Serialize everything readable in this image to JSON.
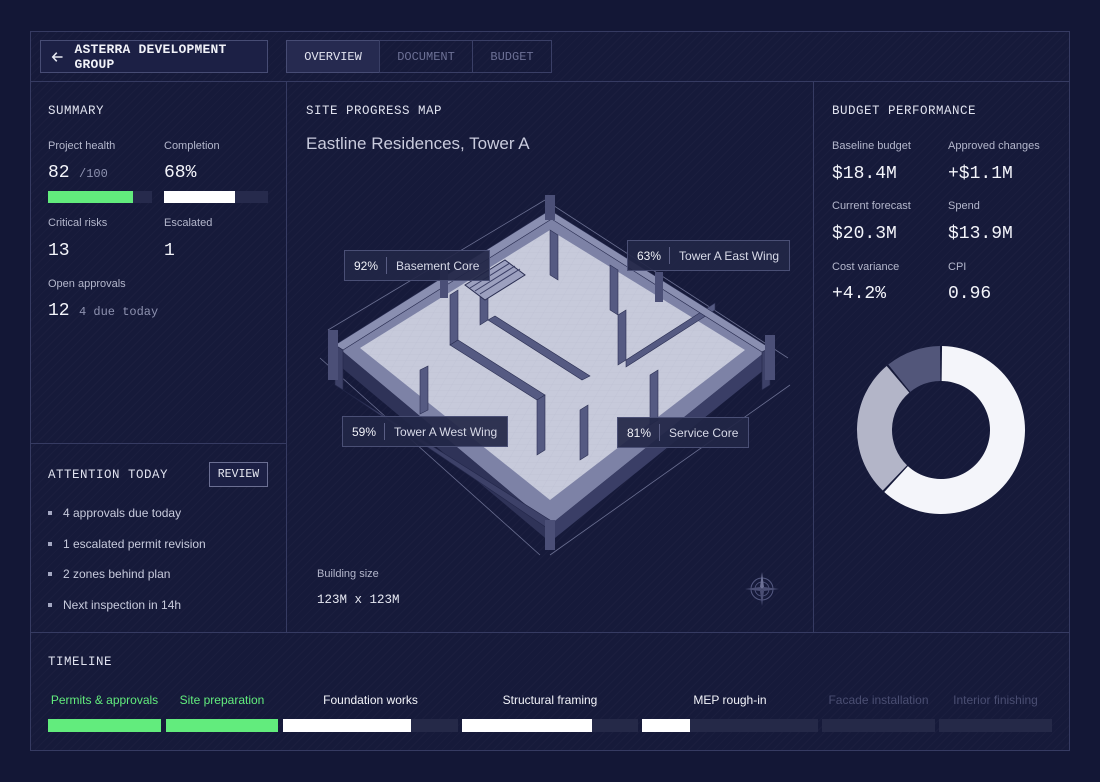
{
  "header": {
    "org_title": "ASTERRA DEVELOPMENT GROUP",
    "tabs": [
      {
        "label": "OVERVIEW",
        "active": true
      },
      {
        "label": "DOCUMENT",
        "active": false
      },
      {
        "label": "BUDGET",
        "active": false
      }
    ]
  },
  "summary": {
    "title": "SUMMARY",
    "project_health_label": "Project health",
    "project_health_value": "82",
    "project_health_max": "/100",
    "project_health_fraction": 0.82,
    "completion_label": "Completion",
    "completion_value": "68%",
    "completion_fraction": 0.68,
    "critical_risks_label": "Critical risks",
    "critical_risks_value": "13",
    "escalated_label": "Escalated",
    "escalated_value": "1",
    "open_approvals_label": "Open approvals",
    "open_approvals_value": "12",
    "open_approvals_note": "4 due today"
  },
  "attention": {
    "title": "ATTENTION TODAY",
    "review_label": "REVIEW",
    "items": [
      "4 approvals due today",
      "1 escalated permit revision",
      "2 zones behind plan",
      "Next inspection in 14h"
    ]
  },
  "site_map": {
    "title": "SITE PROGRESS MAP",
    "subtitle": "Eastline Residences, Tower A",
    "callouts": [
      {
        "pct": "92%",
        "name": "Basement Core"
      },
      {
        "pct": "63%",
        "name": "Tower A East Wing"
      },
      {
        "pct": "59%",
        "name": "Tower A West Wing"
      },
      {
        "pct": "81%",
        "name": "Service Core"
      }
    ],
    "building_size_label": "Building size",
    "building_size_value": "123M x 123M",
    "compass_icon": "compass-icon"
  },
  "budget": {
    "title": "BUDGET PERFORMANCE",
    "baseline_label": "Baseline budget",
    "baseline_value": "$18.4M",
    "approved_label": "Approved changes",
    "approved_value": "+$1.1M",
    "forecast_label": "Current forecast",
    "forecast_value": "$20.3M",
    "spend_label": "Spend",
    "spend_value": "$13.9M",
    "variance_label": "Cost variance",
    "variance_value": "+4.2%",
    "cpi_label": "CPI",
    "cpi_value": "0.96",
    "donut_segments": [
      {
        "value": 0.62,
        "color": "#f4f5fa"
      },
      {
        "value": 0.27,
        "color": "#b3b5c8"
      },
      {
        "value": 0.11,
        "color": "#52567a"
      }
    ]
  },
  "timeline": {
    "title": "TIMELINE",
    "phases": [
      {
        "label": "Permits & approvals",
        "status": "complete",
        "progress": 1.0
      },
      {
        "label": "Site preparation",
        "status": "complete",
        "progress": 1.0
      },
      {
        "label": "Foundation works",
        "status": "active",
        "progress": 0.73
      },
      {
        "label": "Structural framing",
        "status": "active",
        "progress": 0.74
      },
      {
        "label": "MEP rough-in",
        "status": "active",
        "progress": 0.27
      },
      {
        "label": "Facade installation",
        "status": "pending",
        "progress": 0
      },
      {
        "label": "Interior finishing",
        "status": "pending",
        "progress": 0
      }
    ],
    "colors": {
      "complete": "#62ec7d",
      "active": "#ffffff",
      "pending": "#2a2e52",
      "track": "#252948"
    }
  },
  "colors": {
    "health_bar": "#62ec7d",
    "completion_bar": "#ffffff",
    "bar_track": "#262a4c"
  }
}
